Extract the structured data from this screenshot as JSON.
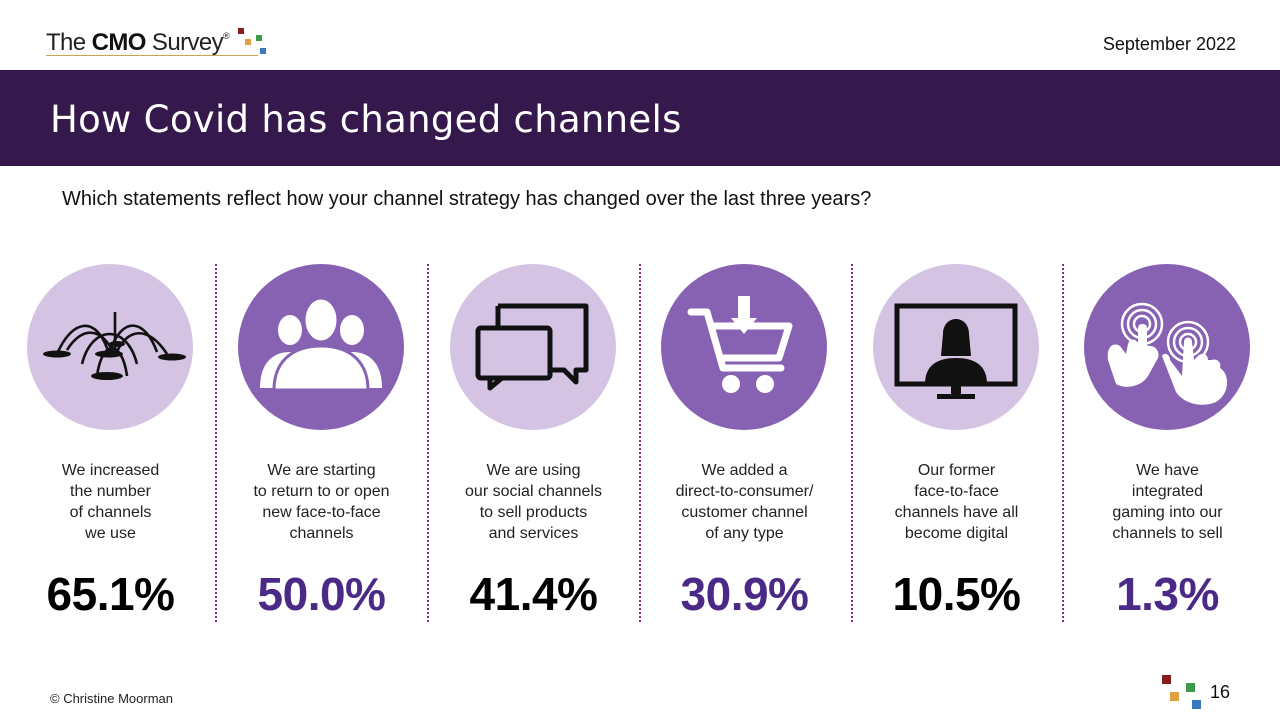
{
  "header": {
    "logo": {
      "prefix": "The",
      "bold": "CMO",
      "suffix": "Survey",
      "reg": "®"
    },
    "date": "September 2022"
  },
  "title": "How Covid has changed channels",
  "question": "Which statements reflect how your channel strategy has changed over the last three years?",
  "colors": {
    "banner": "#35194d",
    "circle_light": "#d4c3e2",
    "circle_dark": "#8862b2",
    "pct_purple": "#4b2a87",
    "pct_black": "#000000",
    "divider": "#8a2a7a",
    "logo_squares": [
      "#8b1c1c",
      "#e0a040",
      "#3a9a4a",
      "#3a78c0"
    ]
  },
  "items": [
    {
      "icon": "fountain-icon",
      "circle": "light",
      "pct_color": "black",
      "label_lines": [
        "We increased",
        "the number",
        "of channels",
        "we use"
      ],
      "percent": "65.1%"
    },
    {
      "icon": "people-group-icon",
      "circle": "dark",
      "pct_color": "purple",
      "label_lines": [
        "We are starting",
        "to return to or open",
        "new face-to-face",
        "channels"
      ],
      "percent": "50.0%"
    },
    {
      "icon": "chat-bubbles-icon",
      "circle": "light",
      "pct_color": "black",
      "label_lines": [
        "We are using",
        "our social channels",
        "to sell products",
        "and services"
      ],
      "percent": "41.4%"
    },
    {
      "icon": "shopping-cart-icon",
      "circle": "dark",
      "pct_color": "purple",
      "label_lines": [
        "We added a",
        "direct-to-consumer/",
        "customer channel",
        "of any type"
      ],
      "percent": "30.9%"
    },
    {
      "icon": "video-call-icon",
      "circle": "light",
      "pct_color": "black",
      "label_lines": [
        "Our former",
        "face-to-face",
        "channels have all",
        "become digital"
      ],
      "percent": "10.5%"
    },
    {
      "icon": "touch-hands-icon",
      "circle": "dark",
      "pct_color": "purple",
      "label_lines": [
        "We have",
        "integrated",
        "gaming into our",
        "channels to sell"
      ],
      "percent": "1.3%"
    }
  ],
  "footer": {
    "copyright": "© Christine Moorman",
    "page_number": "16"
  }
}
